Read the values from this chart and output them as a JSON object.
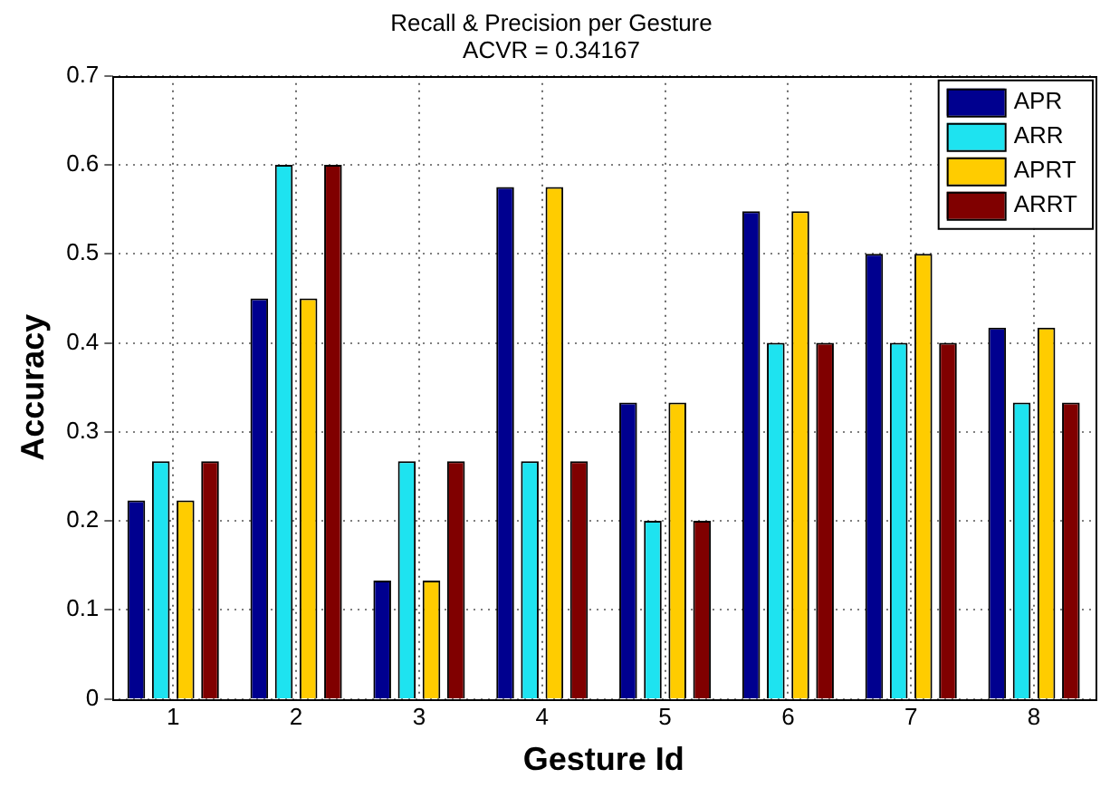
{
  "chart_data": {
    "type": "bar",
    "title": "Recall & Precision per Gesture",
    "subtitle": "ACVR = 0.34167",
    "xlabel": "Gesture Id",
    "ylabel": "Accuracy",
    "categories": [
      "1",
      "2",
      "3",
      "4",
      "5",
      "6",
      "7",
      "8"
    ],
    "series": [
      {
        "name": "APR",
        "color": "#00008f",
        "values": [
          0.223,
          0.45,
          0.133,
          0.575,
          0.333,
          0.548,
          0.5,
          0.417
        ]
      },
      {
        "name": "ARR",
        "color": "#1ee3f0",
        "values": [
          0.267,
          0.6,
          0.267,
          0.267,
          0.2,
          0.4,
          0.4,
          0.333
        ]
      },
      {
        "name": "APRT",
        "color": "#ffcc00",
        "values": [
          0.223,
          0.45,
          0.133,
          0.575,
          0.333,
          0.548,
          0.5,
          0.417
        ]
      },
      {
        "name": "ARRT",
        "color": "#800000",
        "values": [
          0.267,
          0.6,
          0.267,
          0.267,
          0.2,
          0.4,
          0.4,
          0.333
        ]
      }
    ],
    "ylim": [
      0,
      0.7
    ],
    "yticks": [
      0,
      0.1,
      0.2,
      0.3,
      0.4,
      0.5,
      0.6,
      0.7
    ],
    "grid": true,
    "legend": "top right"
  }
}
